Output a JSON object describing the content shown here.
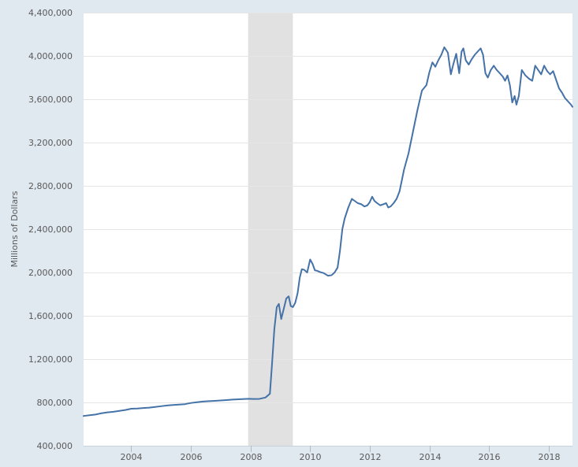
{
  "chart_data": {
    "type": "line",
    "title": "",
    "xlabel": "",
    "ylabel": "Millions of Dollars",
    "xlim": [
      2002.4,
      2018.8
    ],
    "ylim": [
      400000,
      4400000
    ],
    "y_ticks": [
      400000,
      800000,
      1200000,
      1600000,
      2000000,
      2400000,
      2800000,
      3200000,
      3600000,
      4000000,
      4400000
    ],
    "y_tick_labels": [
      "400,000",
      "800,000",
      "1,200,000",
      "1,600,000",
      "2,000,000",
      "2,400,000",
      "2,800,000",
      "3,200,000",
      "3,600,000",
      "4,000,000",
      "4,400,000"
    ],
    "x_ticks": [
      2004,
      2006,
      2008,
      2010,
      2012,
      2014,
      2016,
      2018
    ],
    "x_tick_labels": [
      "2004",
      "2006",
      "2008",
      "2010",
      "2012",
      "2014",
      "2016",
      "2018"
    ],
    "grid": true,
    "line_color": "#4572a7",
    "recession_color": "#e1e1e1",
    "recession": [
      [
        2007.92,
        2009.42
      ]
    ],
    "series": [
      {
        "name": "Millions of Dollars",
        "x": [
          2002.4,
          2002.6,
          2002.8,
          2003.0,
          2003.2,
          2003.4,
          2003.6,
          2003.8,
          2004.0,
          2004.2,
          2004.4,
          2004.6,
          2004.8,
          2005.0,
          2005.2,
          2005.4,
          2005.6,
          2005.8,
          2006.0,
          2006.2,
          2006.4,
          2006.6,
          2006.8,
          2007.0,
          2007.2,
          2007.4,
          2007.6,
          2007.8,
          2007.95,
          2008.1,
          2008.3,
          2008.5,
          2008.65,
          2008.72,
          2008.8,
          2008.88,
          2008.95,
          2009.03,
          2009.12,
          2009.2,
          2009.28,
          2009.35,
          2009.42,
          2009.5,
          2009.58,
          2009.65,
          2009.72,
          2009.8,
          2009.9,
          2010.0,
          2010.08,
          2010.16,
          2010.24,
          2010.32,
          2010.45,
          2010.6,
          2010.72,
          2010.82,
          2010.92,
          2011.0,
          2011.08,
          2011.16,
          2011.28,
          2011.4,
          2011.5,
          2011.6,
          2011.72,
          2011.82,
          2011.92,
          2012.0,
          2012.08,
          2012.16,
          2012.25,
          2012.35,
          2012.45,
          2012.55,
          2012.62,
          2012.7,
          2012.8,
          2012.9,
          2013.0,
          2013.15,
          2013.3,
          2013.45,
          2013.6,
          2013.75,
          2013.9,
          2014.0,
          2014.1,
          2014.2,
          2014.3,
          2014.4,
          2014.5,
          2014.62,
          2014.72,
          2014.8,
          2014.9,
          2015.0,
          2015.08,
          2015.14,
          2015.22,
          2015.32,
          2015.42,
          2015.52,
          2015.62,
          2015.72,
          2015.8,
          2015.88,
          2015.96,
          2016.06,
          2016.16,
          2016.26,
          2016.36,
          2016.46,
          2016.54,
          2016.62,
          2016.7,
          2016.78,
          2016.86,
          2016.92,
          2017.0,
          2017.1,
          2017.22,
          2017.34,
          2017.45,
          2017.55,
          2017.65,
          2017.75,
          2017.85,
          2017.95,
          2018.05,
          2018.15,
          2018.25,
          2018.35,
          2018.45,
          2018.55,
          2018.65,
          2018.75,
          2018.8
        ],
        "values": [
          675000,
          682000,
          688000,
          700000,
          708000,
          714000,
          722000,
          730000,
          742000,
          744000,
          748000,
          752000,
          758000,
          765000,
          772000,
          776000,
          780000,
          784000,
          795000,
          802000,
          808000,
          812000,
          815000,
          818000,
          822000,
          826000,
          829000,
          832000,
          834000,
          832000,
          833000,
          845000,
          880000,
          1150000,
          1480000,
          1680000,
          1710000,
          1570000,
          1670000,
          1760000,
          1780000,
          1690000,
          1680000,
          1720000,
          1810000,
          1950000,
          2030000,
          2025000,
          2000000,
          2120000,
          2080000,
          2020000,
          2015000,
          2005000,
          1995000,
          1970000,
          1975000,
          2000000,
          2045000,
          2200000,
          2400000,
          2500000,
          2600000,
          2680000,
          2660000,
          2640000,
          2630000,
          2610000,
          2620000,
          2650000,
          2700000,
          2660000,
          2640000,
          2620000,
          2630000,
          2640000,
          2600000,
          2610000,
          2640000,
          2680000,
          2750000,
          2950000,
          3100000,
          3300000,
          3500000,
          3680000,
          3730000,
          3850000,
          3940000,
          3900000,
          3960000,
          4010000,
          4080000,
          4030000,
          3830000,
          3920000,
          4020000,
          3840000,
          4040000,
          4070000,
          3960000,
          3920000,
          3970000,
          4010000,
          4040000,
          4070000,
          4010000,
          3840000,
          3800000,
          3870000,
          3910000,
          3870000,
          3840000,
          3810000,
          3770000,
          3820000,
          3730000,
          3570000,
          3630000,
          3550000,
          3630000,
          3870000,
          3820000,
          3790000,
          3770000,
          3910000,
          3870000,
          3830000,
          3910000,
          3860000,
          3830000,
          3860000,
          3780000,
          3700000,
          3660000,
          3610000,
          3580000,
          3550000,
          3530000
        ]
      }
    ]
  }
}
